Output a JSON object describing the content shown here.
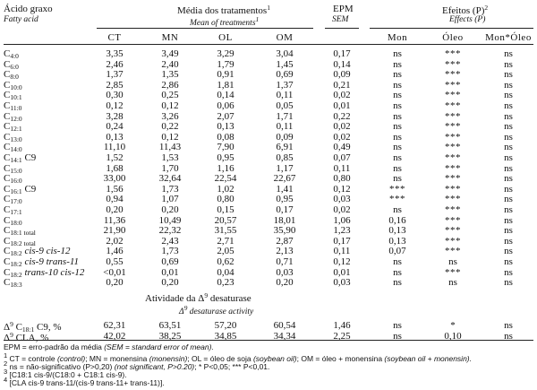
{
  "header": {
    "col_fatty": "Ácido graxo",
    "col_fatty_en": "Fatty acid",
    "means_title": "Média dos tratamentos",
    "means_title_sup": "1",
    "means_en": "Mean of treatments",
    "means_en_sup": "1",
    "epm": "EPM",
    "sem": "SEM",
    "effects": "Efeitos (P)",
    "effects_sup": "2",
    "effects_en": "Effects (P)",
    "sub_cols": [
      "CT",
      "MN",
      "OL",
      "OM",
      "Mon",
      "Óleo",
      "Mon*Óleo"
    ]
  },
  "rows": [
    {
      "base": "C",
      "sub": "4:0",
      "tail": "",
      "vals": [
        "3,35",
        "3,49",
        "3,29",
        "3,04",
        "0,17",
        "ns",
        "***",
        "ns"
      ]
    },
    {
      "base": "C",
      "sub": "6:0",
      "tail": "",
      "vals": [
        "2,46",
        "2,40",
        "1,79",
        "1,45",
        "0,14",
        "ns",
        "***",
        "ns"
      ]
    },
    {
      "base": "C",
      "sub": "8:0",
      "tail": "",
      "vals": [
        "1,37",
        "1,35",
        "0,91",
        "0,69",
        "0,09",
        "ns",
        "***",
        "ns"
      ]
    },
    {
      "base": "C",
      "sub": "10:0",
      "tail": "",
      "vals": [
        "2,85",
        "2,86",
        "1,81",
        "1,37",
        "0,21",
        "ns",
        "***",
        "ns"
      ]
    },
    {
      "base": "C",
      "sub": "10:1",
      "tail": "",
      "vals": [
        "0,30",
        "0,25",
        "0,14",
        "0,11",
        "0,02",
        "ns",
        "***",
        "ns"
      ]
    },
    {
      "base": "C",
      "sub": "11:0",
      "tail": "",
      "vals": [
        "0,12",
        "0,12",
        "0,06",
        "0,05",
        "0,01",
        "ns",
        "***",
        "ns"
      ]
    },
    {
      "base": "C",
      "sub": "12:0",
      "tail": "",
      "vals": [
        "3,28",
        "3,26",
        "2,07",
        "1,71",
        "0,22",
        "ns",
        "***",
        "ns"
      ]
    },
    {
      "base": "C",
      "sub": "12:1",
      "tail": "",
      "vals": [
        "0,24",
        "0,22",
        "0,13",
        "0,11",
        "0,02",
        "ns",
        "***",
        "ns"
      ]
    },
    {
      "base": "C",
      "sub": "13:0",
      "tail": "",
      "vals": [
        "0,13",
        "0,12",
        "0,08",
        "0,09",
        "0,02",
        "ns",
        "***",
        "ns"
      ]
    },
    {
      "base": "C",
      "sub": "14:0",
      "tail": "",
      "vals": [
        "11,10",
        "11,43",
        "7,90",
        "6,91",
        "0,49",
        "ns",
        "***",
        "ns"
      ]
    },
    {
      "base": "C",
      "sub": "14:1",
      "tail": " C9",
      "vals": [
        "1,52",
        "1,53",
        "0,95",
        "0,85",
        "0,07",
        "ns",
        "***",
        "ns"
      ]
    },
    {
      "base": "C",
      "sub": "15:0",
      "tail": "",
      "vals": [
        "1,68",
        "1,70",
        "1,16",
        "1,17",
        "0,11",
        "ns",
        "***",
        "ns"
      ]
    },
    {
      "base": "C",
      "sub": "16:0",
      "tail": "",
      "vals": [
        "33,00",
        "32,64",
        "22,54",
        "22,67",
        "0,80",
        "ns",
        "***",
        "ns"
      ]
    },
    {
      "base": "C",
      "sub": "16:1",
      "tail": " C9",
      "vals": [
        "1,56",
        "1,73",
        "1,02",
        "1,41",
        "0,12",
        "***",
        "***",
        "ns"
      ]
    },
    {
      "base": "C",
      "sub": "17:0",
      "tail": "",
      "vals": [
        "0,94",
        "1,07",
        "0,80",
        "0,95",
        "0,03",
        "***",
        "***",
        "ns"
      ]
    },
    {
      "base": "C",
      "sub": "17:1",
      "tail": "",
      "vals": [
        "0,20",
        "0,20",
        "0,15",
        "0,17",
        "0,02",
        "ns",
        "***",
        "ns"
      ]
    },
    {
      "base": "C",
      "sub": "18:0",
      "tail": "",
      "vals": [
        "11,36",
        "10,49",
        "20,57",
        "18,01",
        "1,06",
        "0,16",
        "***",
        "ns"
      ]
    },
    {
      "base": "C",
      "sub": "18:1 total",
      "tail": "",
      "vals": [
        "21,90",
        "22,32",
        "31,55",
        "35,90",
        "1,23",
        "0,13",
        "***",
        "ns"
      ]
    },
    {
      "base": "C",
      "sub": "18:2 total",
      "tail": "",
      "vals": [
        "2,02",
        "2,43",
        "2,71",
        "2,87",
        "0,17",
        "0,13",
        "***",
        "ns"
      ]
    },
    {
      "base": "C",
      "sub": "18:2",
      "tail": " cis-9 cis-12",
      "tail_italic": true,
      "vals": [
        "1,46",
        "1,73",
        "2,05",
        "2,13",
        "0,11",
        "0,07",
        "***",
        "ns"
      ]
    },
    {
      "base": "C",
      "sub": "18:2",
      "tail": " cis-9 trans-11",
      "tail_italic": true,
      "vals": [
        "0,55",
        "0,69",
        "0,62",
        "0,71",
        "0,12",
        "ns",
        "ns",
        "ns"
      ]
    },
    {
      "base": "C",
      "sub": "18:2",
      "tail": " trans-10 cis-12",
      "tail_italic": true,
      "vals": [
        "<0,01",
        "0,01",
        "0,04",
        "0,03",
        "0,01",
        "ns",
        "***",
        "ns"
      ]
    },
    {
      "base": "C",
      "sub": "18:3",
      "tail": "",
      "vals": [
        "0,20",
        "0,20",
        "0,23",
        "0,20",
        "0,03",
        "ns",
        "ns",
        "ns"
      ]
    }
  ],
  "activity": {
    "title_pre": "Atividade da Δ",
    "title_sup": "9",
    "title_post": " desaturase",
    "en_pre": "Δ",
    "en_sup": "9",
    "en_post": " desaturase activity"
  },
  "activity_rows": [
    {
      "label_pre": "Δ",
      "label_sup": "9",
      "label_mid": " C",
      "label_sub": "18:1",
      "label_post": " C9, %",
      "vals": [
        "62,31",
        "63,51",
        "57,20",
        "60,54",
        "1,46",
        "ns",
        "*",
        "ns"
      ]
    },
    {
      "label_pre": "Δ",
      "label_sup": "9",
      "label_mid": " CLA, %",
      "label_sub": "",
      "label_post": "",
      "vals": [
        "42,02",
        "38,25",
        "34,85",
        "34,34",
        "2,25",
        "ns",
        "0,10",
        "ns"
      ]
    }
  ],
  "footnotes": {
    "f0_a": "EPM = erro-padrão da média ",
    "f0_b": "(SEM = standard error of mean).",
    "f1_sup": "1",
    "f1_a": " CT = controle ",
    "f1_b": "(control)",
    "f1_c": "; MN = monensina ",
    "f1_d": "(monensin)",
    "f1_e": "; OL = óleo de soja ",
    "f1_f": "(soybean oil)",
    "f1_g": "; OM = óleo + monensina ",
    "f1_h": "(soybean oil + monensin).",
    "f2_sup": "2",
    "f2_a": " ns = não-significativo (P>0,20) ",
    "f2_b": "(not significant, P>0.20)",
    "f2_c": "; * P<0,05; *** P<0,01.",
    "f3_sup": "3",
    "f3_text": " [C18:1 cis-9/(C18:0 + C18:1 cis-9).",
    "f4_sup": "4",
    "f4_text": " [CLA cis-9 trans-11/(cis-9 trans-11+ trans-11)]."
  }
}
